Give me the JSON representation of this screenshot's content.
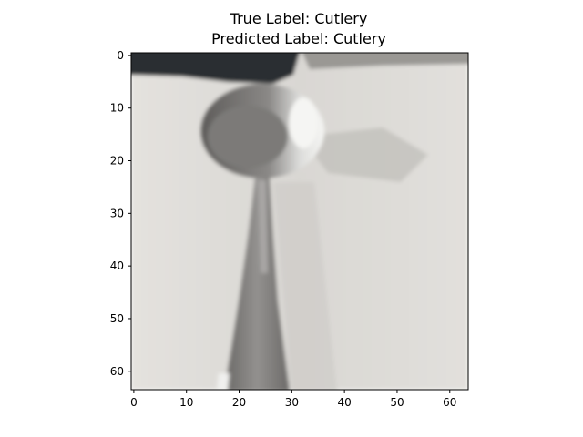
{
  "title": {
    "true_label_line": "True Label: Cutlery",
    "predicted_label_line": "Predicted Label: Cutlery"
  },
  "image": {
    "subject": "spoon",
    "description": "Low-resolution 64x64 photo of a metal spoon on a light gray surface, dark object at top edge",
    "colors": {
      "background": "#dcdad6",
      "spoon_dark": "#6e6c6a",
      "spoon_mid": "#8e8c8a",
      "highlight": "#f2f2f0",
      "shadow": "#b8b6b2",
      "top_dark": "#2a2c30"
    }
  },
  "axes": {
    "x_ticks": [
      "0",
      "10",
      "20",
      "30",
      "40",
      "50",
      "60"
    ],
    "y_ticks": [
      "0",
      "10",
      "20",
      "30",
      "40",
      "50",
      "60"
    ],
    "x_tick_values": [
      0,
      10,
      20,
      30,
      40,
      50,
      60
    ],
    "y_tick_values": [
      0,
      10,
      20,
      30,
      40,
      50,
      60
    ],
    "xlim": [
      -0.5,
      63.5
    ],
    "ylim": [
      63.5,
      -0.5
    ]
  }
}
